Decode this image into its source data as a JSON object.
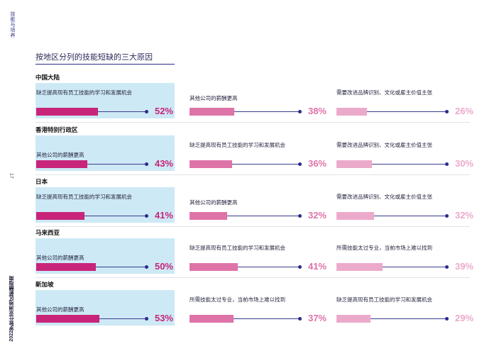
{
  "sidebar": {
    "top_label": "技能与培养",
    "page_number": "17",
    "bottom_label": "2022罗致仕亚洲地区薪酬指南"
  },
  "section_title": "按地区分列的技能短缺的三大原因",
  "colors": {
    "rank1": "#c8247a",
    "rank2": "#de73a8",
    "rank3": "#ecaacb",
    "highlight": "#cde9f5"
  },
  "regions": [
    {
      "name": "中国大陆",
      "items": [
        {
          "label": "缺乏提高现有员工技能的学习和发展机会",
          "percent": "52%",
          "value": 52
        },
        {
          "label": "其他公司的薪酬更高",
          "percent": "38%",
          "value": 38
        },
        {
          "label": "需要改进品牌识别、文化或雇主价值主张",
          "percent": "26%",
          "value": 26
        }
      ]
    },
    {
      "name": "香港特别行政区",
      "items": [
        {
          "label": "其他公司的薪酬更高",
          "percent": "43%",
          "value": 43
        },
        {
          "label": "缺乏提高现有员工技能的学习和发展机会",
          "percent": "36%",
          "value": 36
        },
        {
          "label": "需要改进品牌识别、文化或雇主价值主张",
          "percent": "30%",
          "value": 30
        }
      ]
    },
    {
      "name": "日本",
      "items": [
        {
          "label": "缺乏提高现有员工技能的学习和发展机会",
          "percent": "41%",
          "value": 41
        },
        {
          "label": "其他公司的薪酬更高",
          "percent": "32%",
          "value": 32
        },
        {
          "label": "需要改进品牌识别、文化或雇主价值主张",
          "percent": "32%",
          "value": 32
        }
      ]
    },
    {
      "name": "马来西亚",
      "items": [
        {
          "label": "其他公司的薪酬更高",
          "percent": "50%",
          "value": 50
        },
        {
          "label": "缺乏提高现有员工技能的学习和发展机会",
          "percent": "41%",
          "value": 41
        },
        {
          "label": "所需技能太过专业，当前市场上难以找到",
          "percent": "39%",
          "value": 39
        }
      ]
    },
    {
      "name": "新加坡",
      "items": [
        {
          "label": "其他公司的薪酬更高",
          "percent": "53%",
          "value": 53
        },
        {
          "label": "所需技能太过专业，当前市场上难以找到",
          "percent": "37%",
          "value": 37
        },
        {
          "label": "缺乏提高现有员工技能的学习和发展机会",
          "percent": "29%",
          "value": 29
        }
      ]
    }
  ]
}
